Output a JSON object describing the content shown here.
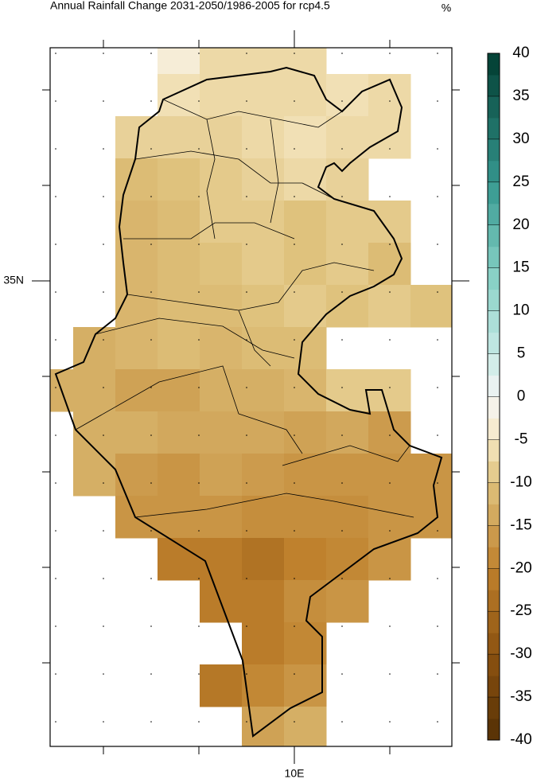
{
  "title": "Annual Rainfall Change 2031-2050/1986-2005 for rcp4.5",
  "unit": "%",
  "axes": {
    "lat_labels": [
      "35N"
    ],
    "lon_labels": [
      "10E"
    ]
  },
  "colorbar": {
    "lim": [
      -40,
      40
    ],
    "ticks": [
      40,
      35,
      30,
      25,
      20,
      15,
      10,
      5,
      0,
      -5,
      -10,
      -15,
      -20,
      -25,
      -30,
      -35,
      -40
    ]
  },
  "grid": {
    "rows": [
      [
        null,
        null,
        null,
        -3,
        -7,
        -7,
        -7,
        null,
        null,
        null
      ],
      [
        null,
        null,
        null,
        -6,
        -7,
        -7,
        -7,
        -6,
        -7,
        null
      ],
      [
        null,
        null,
        -8,
        -8,
        -8,
        -7,
        -6,
        -7,
        -7,
        null
      ],
      [
        null,
        null,
        -11,
        -10,
        -9,
        -8,
        -7,
        -8,
        null,
        null
      ],
      [
        null,
        null,
        -12,
        -11,
        -9,
        -9,
        -10,
        -9,
        -9,
        null
      ],
      [
        null,
        null,
        -12,
        -11,
        -10,
        -9,
        -10,
        -9,
        -11,
        null
      ],
      [
        null,
        null,
        -12,
        -11,
        -11,
        -10,
        -9,
        -10,
        -9,
        -10
      ],
      [
        null,
        -13,
        -12,
        -11,
        -12,
        -11,
        -11,
        null,
        null,
        null
      ],
      [
        -13,
        -13,
        -15,
        -15,
        -13,
        -13,
        -12,
        -9,
        -9,
        null
      ],
      [
        null,
        -13,
        -13,
        -14,
        -14,
        -14,
        -15,
        -14,
        -16,
        null
      ],
      [
        null,
        -13,
        -16,
        -17,
        -15,
        -16,
        -17,
        -17,
        -17,
        -17
      ],
      [
        null,
        null,
        -17,
        -17,
        -17,
        -18,
        -18,
        -18,
        -17,
        -17
      ],
      [
        null,
        null,
        null,
        -21,
        -21,
        -23,
        -20,
        -19,
        -17,
        null
      ],
      [
        null,
        null,
        null,
        null,
        -21,
        -21,
        -18,
        -17,
        null,
        null
      ],
      [
        null,
        null,
        null,
        null,
        null,
        -21,
        -19,
        null,
        null,
        null
      ],
      [
        null,
        null,
        null,
        null,
        -22,
        -19,
        -17,
        null,
        null,
        null
      ],
      [
        null,
        null,
        null,
        null,
        null,
        -15,
        -13,
        null,
        null,
        null
      ]
    ]
  }
}
